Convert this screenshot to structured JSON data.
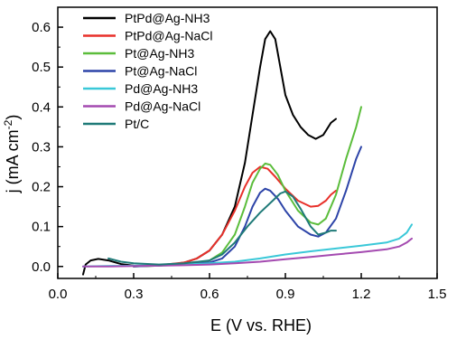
{
  "chart_data": {
    "type": "line",
    "title": "",
    "xlabel": "E (V vs. RHE)",
    "ylabel_main": "j (mA cm",
    "ylabel_sup": "-2",
    "ylabel_close": ")",
    "xlim": [
      0.0,
      1.5
    ],
    "ylim": [
      -0.03,
      0.65
    ],
    "xticks": [
      0.0,
      0.3,
      0.6,
      0.9,
      1.2,
      1.5
    ],
    "yticks": [
      0.0,
      0.1,
      0.2,
      0.3,
      0.4,
      0.5,
      0.6
    ],
    "xtick_labels": [
      "0.0",
      "0.3",
      "0.6",
      "0.9",
      "1.2",
      "1.5"
    ],
    "ytick_labels": [
      "0.0",
      "0.1",
      "0.2",
      "0.3",
      "0.4",
      "0.5",
      "0.6"
    ],
    "grid": false,
    "legend_position": "top-left",
    "series": [
      {
        "name": "PtPd@Ag-NH3",
        "color": "#000000",
        "points": [
          [
            0.1,
            -0.02
          ],
          [
            0.11,
            0.005
          ],
          [
            0.13,
            0.015
          ],
          [
            0.16,
            0.019
          ],
          [
            0.2,
            0.015
          ],
          [
            0.25,
            0.006
          ],
          [
            0.3,
            0.002
          ],
          [
            0.35,
            0.001
          ],
          [
            0.4,
            0.002
          ],
          [
            0.45,
            0.005
          ],
          [
            0.5,
            0.01
          ],
          [
            0.55,
            0.02
          ],
          [
            0.6,
            0.04
          ],
          [
            0.65,
            0.08
          ],
          [
            0.7,
            0.15
          ],
          [
            0.74,
            0.26
          ],
          [
            0.77,
            0.38
          ],
          [
            0.8,
            0.5
          ],
          [
            0.82,
            0.57
          ],
          [
            0.84,
            0.59
          ],
          [
            0.86,
            0.57
          ],
          [
            0.88,
            0.5
          ],
          [
            0.9,
            0.43
          ],
          [
            0.93,
            0.38
          ],
          [
            0.96,
            0.35
          ],
          [
            0.99,
            0.33
          ],
          [
            1.02,
            0.32
          ],
          [
            1.05,
            0.33
          ],
          [
            1.08,
            0.36
          ],
          [
            1.1,
            0.37
          ]
        ]
      },
      {
        "name": "PtPd@Ag-NaCl",
        "color": "#e8302a",
        "points": [
          [
            0.3,
            0.0
          ],
          [
            0.4,
            0.003
          ],
          [
            0.5,
            0.01
          ],
          [
            0.55,
            0.02
          ],
          [
            0.6,
            0.04
          ],
          [
            0.65,
            0.08
          ],
          [
            0.7,
            0.14
          ],
          [
            0.74,
            0.2
          ],
          [
            0.77,
            0.235
          ],
          [
            0.8,
            0.25
          ],
          [
            0.83,
            0.245
          ],
          [
            0.86,
            0.225
          ],
          [
            0.9,
            0.195
          ],
          [
            0.95,
            0.165
          ],
          [
            1.0,
            0.15
          ],
          [
            1.03,
            0.152
          ],
          [
            1.06,
            0.165
          ],
          [
            1.08,
            0.18
          ],
          [
            1.1,
            0.19
          ]
        ]
      },
      {
        "name": "Pt@Ag-NH3",
        "color": "#5bbd3b",
        "points": [
          [
            0.3,
            0.0
          ],
          [
            0.45,
            0.003
          ],
          [
            0.55,
            0.008
          ],
          [
            0.6,
            0.015
          ],
          [
            0.65,
            0.035
          ],
          [
            0.7,
            0.08
          ],
          [
            0.74,
            0.15
          ],
          [
            0.77,
            0.21
          ],
          [
            0.8,
            0.245
          ],
          [
            0.82,
            0.258
          ],
          [
            0.84,
            0.255
          ],
          [
            0.87,
            0.23
          ],
          [
            0.9,
            0.19
          ],
          [
            0.95,
            0.14
          ],
          [
            1.0,
            0.11
          ],
          [
            1.03,
            0.105
          ],
          [
            1.06,
            0.12
          ],
          [
            1.1,
            0.18
          ],
          [
            1.14,
            0.27
          ],
          [
            1.18,
            0.35
          ],
          [
            1.2,
            0.4
          ]
        ]
      },
      {
        "name": "Pt@Ag-NaCl",
        "color": "#2d44a8",
        "points": [
          [
            0.3,
            0.0
          ],
          [
            0.5,
            0.005
          ],
          [
            0.6,
            0.01
          ],
          [
            0.65,
            0.02
          ],
          [
            0.7,
            0.05
          ],
          [
            0.74,
            0.1
          ],
          [
            0.77,
            0.15
          ],
          [
            0.8,
            0.185
          ],
          [
            0.82,
            0.195
          ],
          [
            0.84,
            0.19
          ],
          [
            0.87,
            0.17
          ],
          [
            0.9,
            0.14
          ],
          [
            0.95,
            0.1
          ],
          [
            1.0,
            0.08
          ],
          [
            1.03,
            0.075
          ],
          [
            1.06,
            0.085
          ],
          [
            1.1,
            0.12
          ],
          [
            1.14,
            0.19
          ],
          [
            1.18,
            0.27
          ],
          [
            1.2,
            0.3
          ]
        ]
      },
      {
        "name": "Pd@Ag-NH3",
        "color": "#3ac8d8",
        "points": [
          [
            0.1,
            0.0
          ],
          [
            0.2,
            0.001
          ],
          [
            0.3,
            0.002
          ],
          [
            0.4,
            0.003
          ],
          [
            0.5,
            0.005
          ],
          [
            0.6,
            0.008
          ],
          [
            0.7,
            0.012
          ],
          [
            0.8,
            0.02
          ],
          [
            0.9,
            0.03
          ],
          [
            1.0,
            0.038
          ],
          [
            1.1,
            0.045
          ],
          [
            1.2,
            0.052
          ],
          [
            1.3,
            0.06
          ],
          [
            1.35,
            0.07
          ],
          [
            1.38,
            0.085
          ],
          [
            1.4,
            0.105
          ]
        ]
      },
      {
        "name": "Pd@Ag-NaCl",
        "color": "#a44ab0",
        "points": [
          [
            0.1,
            0.0
          ],
          [
            0.2,
            0.0
          ],
          [
            0.3,
            0.001
          ],
          [
            0.4,
            0.002
          ],
          [
            0.5,
            0.003
          ],
          [
            0.6,
            0.005
          ],
          [
            0.7,
            0.008
          ],
          [
            0.8,
            0.012
          ],
          [
            0.9,
            0.018
          ],
          [
            1.0,
            0.024
          ],
          [
            1.1,
            0.03
          ],
          [
            1.2,
            0.036
          ],
          [
            1.3,
            0.043
          ],
          [
            1.35,
            0.05
          ],
          [
            1.38,
            0.06
          ],
          [
            1.4,
            0.07
          ]
        ]
      },
      {
        "name": "Pt/C",
        "color": "#1f7a78",
        "points": [
          [
            0.2,
            0.02
          ],
          [
            0.25,
            0.012
          ],
          [
            0.3,
            0.008
          ],
          [
            0.4,
            0.005
          ],
          [
            0.5,
            0.008
          ],
          [
            0.6,
            0.015
          ],
          [
            0.65,
            0.03
          ],
          [
            0.7,
            0.06
          ],
          [
            0.75,
            0.1
          ],
          [
            0.8,
            0.135
          ],
          [
            0.85,
            0.165
          ],
          [
            0.88,
            0.183
          ],
          [
            0.9,
            0.188
          ],
          [
            0.93,
            0.175
          ],
          [
            0.96,
            0.145
          ],
          [
            1.0,
            0.1
          ],
          [
            1.03,
            0.08
          ],
          [
            1.06,
            0.085
          ],
          [
            1.08,
            0.09
          ],
          [
            1.1,
            0.09
          ]
        ]
      }
    ]
  }
}
